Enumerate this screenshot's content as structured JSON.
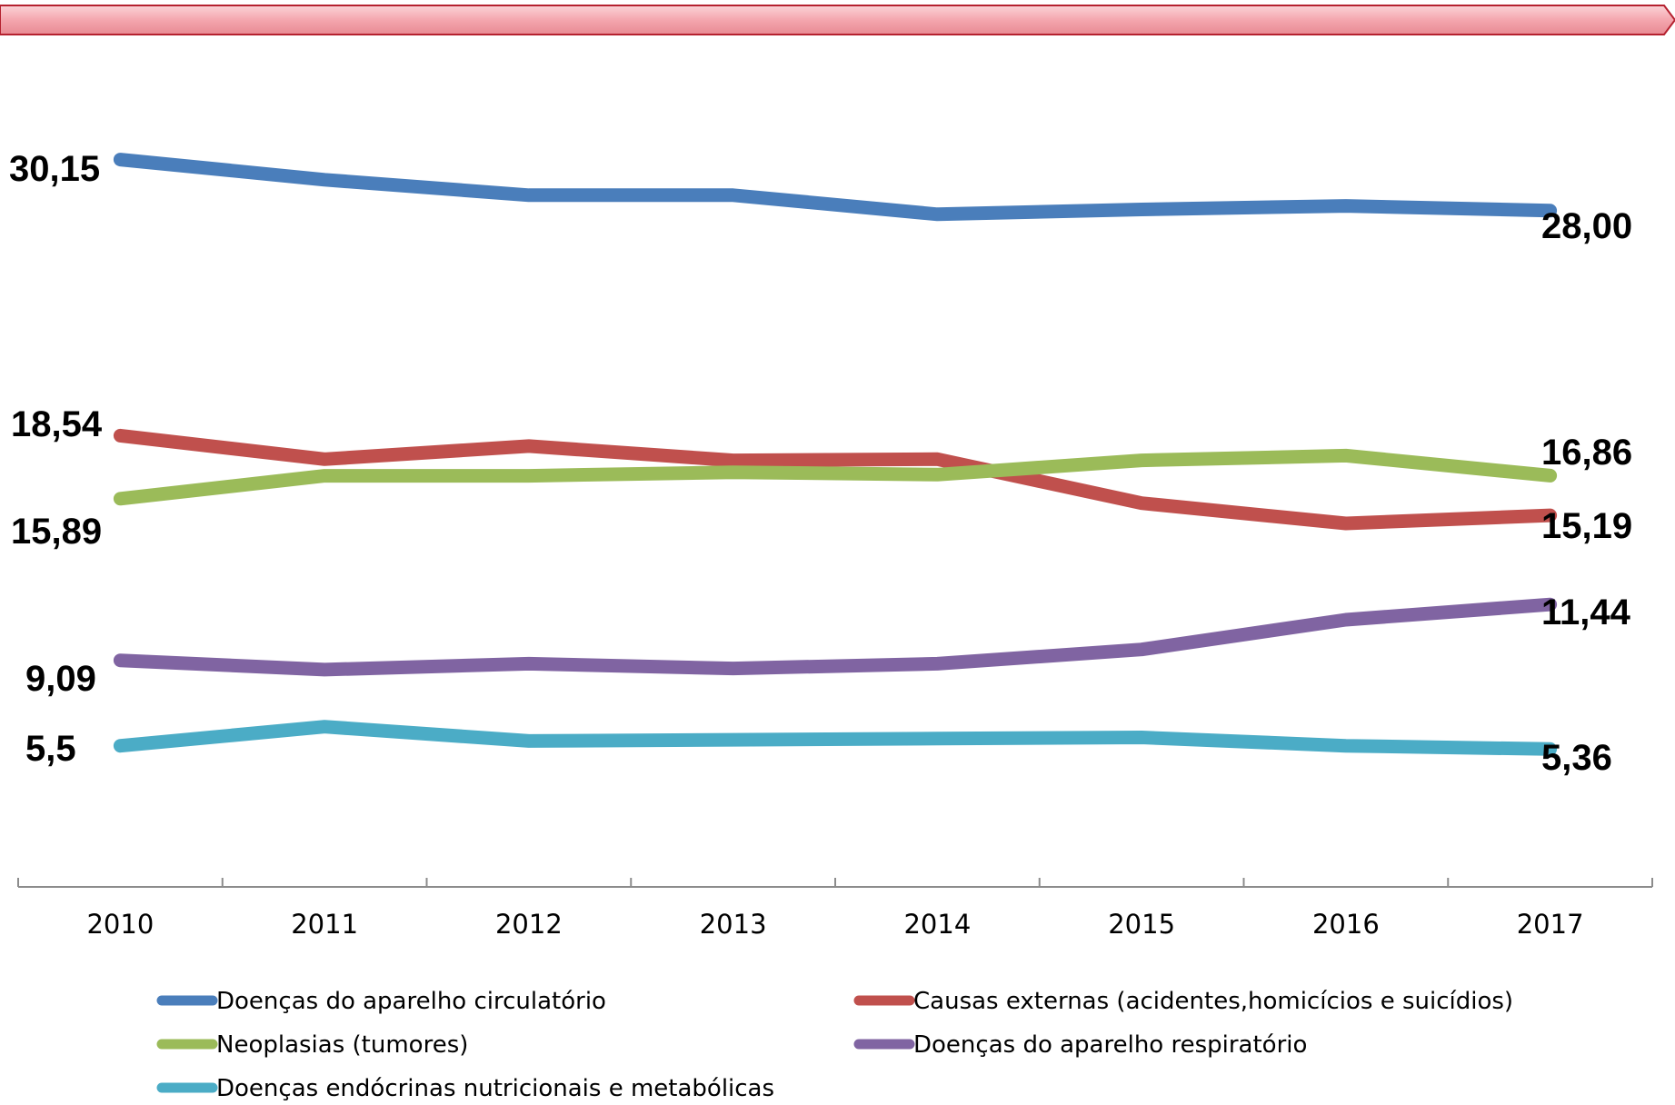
{
  "colors": {
    "banner_fill": "#f4a6ae",
    "banner_border": "#b5212f"
  },
  "chart_data": {
    "type": "line",
    "categories": [
      "2010",
      "2011",
      "2012",
      "2013",
      "2014",
      "2015",
      "2016",
      "2017"
    ],
    "legend_position": "bottom",
    "grid": false,
    "ylim": [
      0,
      34
    ],
    "series": [
      {
        "key": "circulatorio",
        "name": "Doenças do aparelho circulatório",
        "color": "#4a7ebb",
        "values": [
          30.15,
          29.3,
          28.65,
          28.65,
          27.85,
          28.05,
          28.2,
          28.0
        ],
        "start_label": "30,15",
        "end_label": "28,00"
      },
      {
        "key": "externas",
        "name": "Causas externas (acidentes,homicícios e suicídios)",
        "color": "#c0504d",
        "values": [
          18.54,
          17.55,
          18.1,
          17.5,
          17.55,
          15.7,
          14.85,
          15.19
        ],
        "start_label": "18,54",
        "end_label": "15,19"
      },
      {
        "key": "neoplasias",
        "name": "Neoplasias (tumores)",
        "color": "#9bbb59",
        "values": [
          15.89,
          16.85,
          16.85,
          17.0,
          16.9,
          17.5,
          17.7,
          16.86
        ],
        "start_label": "15,89",
        "end_label": "16,86"
      },
      {
        "key": "respiratorio",
        "name": "Doenças do aparelho respiratório",
        "color": "#8064a2",
        "values": [
          9.09,
          8.7,
          8.95,
          8.75,
          8.95,
          9.55,
          10.8,
          11.44
        ],
        "start_label": "9,09",
        "end_label": "11,44"
      },
      {
        "key": "endocrinas",
        "name": "Doenças endócrinas nutricionais e metabólicas",
        "color": "#4bacc6",
        "values": [
          5.5,
          6.3,
          5.7,
          5.75,
          5.8,
          5.85,
          5.5,
          5.36
        ],
        "start_label": "5,5",
        "end_label": "5,36"
      }
    ]
  }
}
